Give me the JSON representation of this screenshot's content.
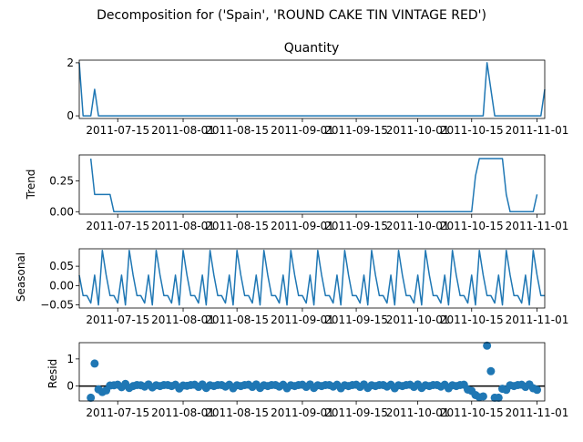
{
  "figure": {
    "suptitle": "Decomposition for ('Spain', 'ROUND CAKE TIN VINTAGE RED')"
  },
  "colors": {
    "series": "#1f77b4",
    "axis": "#000000",
    "background": "#ffffff"
  },
  "chart_data": [
    {
      "type": "line",
      "title": "Quantity",
      "ylabel": "",
      "x_start": "2011-07-05",
      "x_end": "2011-11-03",
      "xlim": [
        "2011-07-05",
        "2011-11-03"
      ],
      "ylim": [
        -0.1,
        2.1
      ],
      "yticks": [
        0,
        2
      ],
      "ytick_labels": [
        "0",
        "2"
      ],
      "xtick_dates": [
        "2011-07-15",
        "2011-08-01",
        "2011-08-15",
        "2011-09-01",
        "2011-09-15",
        "2011-10-01",
        "2011-10-15",
        "2011-11-01"
      ],
      "xtick_labels": [
        "2011-07-15",
        "2011-08-01",
        "2011-08-15",
        "2011-09-01",
        "2011-09-15",
        "2011-10-01",
        "2011-10-15",
        "2011-11-01"
      ],
      "points": [
        [
          "2011-07-05",
          2
        ],
        [
          "2011-07-06",
          0
        ],
        [
          "2011-07-08",
          0
        ],
        [
          "2011-07-09",
          1
        ],
        [
          "2011-07-10",
          0
        ],
        [
          "2011-10-18",
          0
        ],
        [
          "2011-10-19",
          2
        ],
        [
          "2011-10-21",
          0
        ],
        [
          "2011-11-02",
          0
        ],
        [
          "2011-11-03",
          1
        ]
      ]
    },
    {
      "type": "line",
      "title": "",
      "ylabel": "Trend",
      "x_start": "2011-07-05",
      "x_end": "2011-11-03",
      "xlim": [
        "2011-07-05",
        "2011-11-03"
      ],
      "ylim": [
        -0.02,
        0.46
      ],
      "yticks": [
        0,
        0.25
      ],
      "ytick_labels": [
        "0.00",
        "0.25"
      ],
      "xtick_dates": [
        "2011-07-15",
        "2011-08-01",
        "2011-08-15",
        "2011-09-01",
        "2011-09-15",
        "2011-10-01",
        "2011-10-15",
        "2011-11-01"
      ],
      "xtick_labels": [
        "2011-07-15",
        "2011-08-01",
        "2011-08-15",
        "2011-09-01",
        "2011-09-15",
        "2011-10-01",
        "2011-10-15",
        "2011-11-01"
      ],
      "points": [
        [
          "2011-07-08",
          0.43
        ],
        [
          "2011-07-09",
          0.14
        ],
        [
          "2011-07-13",
          0.14
        ],
        [
          "2011-07-14",
          0.0
        ],
        [
          "2011-10-15",
          0.0
        ],
        [
          "2011-10-16",
          0.29
        ],
        [
          "2011-10-17",
          0.43
        ],
        [
          "2011-10-23",
          0.43
        ],
        [
          "2011-10-24",
          0.14
        ],
        [
          "2011-10-25",
          0.0
        ],
        [
          "2011-10-31",
          0.0
        ],
        [
          "2011-11-01",
          0.14
        ]
      ]
    },
    {
      "type": "line",
      "title": "",
      "ylabel": "Seasonal",
      "x_start": "2011-07-05",
      "x_end": "2011-11-03",
      "xlim": [
        "2011-07-05",
        "2011-11-03"
      ],
      "ylim": [
        -0.058,
        0.095
      ],
      "yticks": [
        -0.05,
        0.0,
        0.05
      ],
      "ytick_labels": [
        "−0.05",
        "0.00",
        "0.05"
      ],
      "xtick_dates": [
        "2011-07-15",
        "2011-08-01",
        "2011-08-15",
        "2011-09-01",
        "2011-09-15",
        "2011-10-01",
        "2011-10-15",
        "2011-11-01"
      ],
      "xtick_labels": [
        "2011-07-15",
        "2011-08-01",
        "2011-08-15",
        "2011-09-01",
        "2011-09-15",
        "2011-10-01",
        "2011-10-15",
        "2011-11-01"
      ],
      "period_days": 7,
      "weekly_pattern": [
        0.027,
        -0.026,
        -0.026,
        -0.045,
        0.027,
        -0.05,
        0.091
      ]
    },
    {
      "type": "scatter",
      "title": "",
      "ylabel": "Resid",
      "x_start": "2011-07-05",
      "x_end": "2011-11-03",
      "xlim": [
        "2011-07-05",
        "2011-11-03"
      ],
      "ylim": [
        -0.55,
        1.6
      ],
      "yticks": [
        0,
        1
      ],
      "ytick_labels": [
        "0",
        "1"
      ],
      "baseline": 0,
      "xtick_dates": [
        "2011-07-15",
        "2011-08-01",
        "2011-08-15",
        "2011-09-01",
        "2011-09-15",
        "2011-10-01",
        "2011-10-15",
        "2011-11-01"
      ],
      "xtick_labels": [
        "2011-07-15",
        "2011-08-01",
        "2011-08-15",
        "2011-09-01",
        "2011-09-15",
        "2011-10-01",
        "2011-10-15",
        "2011-11-01"
      ],
      "points": [
        [
          "2011-07-08",
          -0.43
        ],
        [
          "2011-07-09",
          0.83
        ],
        [
          "2011-07-10",
          -0.12
        ],
        [
          "2011-07-11",
          -0.22
        ],
        [
          "2011-07-12",
          -0.16
        ],
        [
          "2011-07-13",
          0.02
        ],
        [
          "2011-07-14",
          0.03
        ],
        [
          "2011-07-15",
          0.05
        ],
        [
          "2011-07-16",
          -0.04
        ],
        [
          "2011-07-17",
          0.08
        ],
        [
          "2011-07-18",
          -0.07
        ],
        [
          "2011-07-19",
          0.0
        ],
        [
          "2011-07-20",
          0.04
        ],
        [
          "2011-07-21",
          0.03
        ],
        [
          "2011-07-22",
          -0.02
        ],
        [
          "2011-07-23",
          0.06
        ],
        [
          "2011-07-24",
          -0.05
        ],
        [
          "2011-07-25",
          0.03
        ],
        [
          "2011-07-26",
          0.0
        ],
        [
          "2011-07-27",
          0.04
        ],
        [
          "2011-07-28",
          0.04
        ],
        [
          "2011-07-29",
          0.0
        ],
        [
          "2011-07-30",
          0.05
        ],
        [
          "2011-07-31",
          -0.09
        ],
        [
          "2011-08-01",
          0.02
        ],
        [
          "2011-08-02",
          0.01
        ],
        [
          "2011-08-03",
          0.04
        ],
        [
          "2011-08-04",
          0.05
        ],
        [
          "2011-08-05",
          -0.03
        ],
        [
          "2011-08-06",
          0.06
        ],
        [
          "2011-08-07",
          -0.07
        ],
        [
          "2011-08-08",
          0.03
        ],
        [
          "2011-08-09",
          0.0
        ],
        [
          "2011-08-10",
          0.04
        ],
        [
          "2011-08-11",
          0.04
        ],
        [
          "2011-08-12",
          -0.02
        ],
        [
          "2011-08-13",
          0.05
        ],
        [
          "2011-08-14",
          -0.08
        ],
        [
          "2011-08-15",
          0.03
        ],
        [
          "2011-08-16",
          0.0
        ],
        [
          "2011-08-17",
          0.04
        ],
        [
          "2011-08-18",
          0.05
        ],
        [
          "2011-08-19",
          -0.03
        ],
        [
          "2011-08-20",
          0.06
        ],
        [
          "2011-08-21",
          -0.07
        ],
        [
          "2011-08-22",
          0.03
        ],
        [
          "2011-08-23",
          0.0
        ],
        [
          "2011-08-24",
          0.04
        ],
        [
          "2011-08-25",
          0.04
        ],
        [
          "2011-08-26",
          -0.02
        ],
        [
          "2011-08-27",
          0.05
        ],
        [
          "2011-08-28",
          -0.08
        ],
        [
          "2011-08-29",
          0.03
        ],
        [
          "2011-08-30",
          0.0
        ],
        [
          "2011-08-31",
          0.04
        ],
        [
          "2011-09-01",
          0.05
        ],
        [
          "2011-09-02",
          -0.03
        ],
        [
          "2011-09-03",
          0.06
        ],
        [
          "2011-09-04",
          -0.07
        ],
        [
          "2011-09-05",
          0.03
        ],
        [
          "2011-09-06",
          0.0
        ],
        [
          "2011-09-07",
          0.04
        ],
        [
          "2011-09-08",
          0.04
        ],
        [
          "2011-09-09",
          -0.02
        ],
        [
          "2011-09-10",
          0.05
        ],
        [
          "2011-09-11",
          -0.08
        ],
        [
          "2011-09-12",
          0.03
        ],
        [
          "2011-09-13",
          0.0
        ],
        [
          "2011-09-14",
          0.04
        ],
        [
          "2011-09-15",
          0.05
        ],
        [
          "2011-09-16",
          -0.03
        ],
        [
          "2011-09-17",
          0.06
        ],
        [
          "2011-09-18",
          -0.07
        ],
        [
          "2011-09-19",
          0.03
        ],
        [
          "2011-09-20",
          0.0
        ],
        [
          "2011-09-21",
          0.04
        ],
        [
          "2011-09-22",
          0.04
        ],
        [
          "2011-09-23",
          -0.02
        ],
        [
          "2011-09-24",
          0.05
        ],
        [
          "2011-09-25",
          -0.08
        ],
        [
          "2011-09-26",
          0.03
        ],
        [
          "2011-09-27",
          0.0
        ],
        [
          "2011-09-28",
          0.04
        ],
        [
          "2011-09-29",
          0.05
        ],
        [
          "2011-09-30",
          -0.03
        ],
        [
          "2011-10-01",
          0.06
        ],
        [
          "2011-10-02",
          -0.07
        ],
        [
          "2011-10-03",
          0.03
        ],
        [
          "2011-10-04",
          0.0
        ],
        [
          "2011-10-05",
          0.04
        ],
        [
          "2011-10-06",
          0.04
        ],
        [
          "2011-10-07",
          -0.02
        ],
        [
          "2011-10-08",
          0.05
        ],
        [
          "2011-10-09",
          -0.08
        ],
        [
          "2011-10-10",
          0.03
        ],
        [
          "2011-10-11",
          0.0
        ],
        [
          "2011-10-12",
          0.04
        ],
        [
          "2011-10-13",
          0.05
        ],
        [
          "2011-10-14",
          -0.13
        ],
        [
          "2011-10-15",
          -0.18
        ],
        [
          "2011-10-16",
          -0.33
        ],
        [
          "2011-10-17",
          -0.41
        ],
        [
          "2011-10-18",
          -0.38
        ],
        [
          "2011-10-19",
          1.49
        ],
        [
          "2011-10-20",
          0.55
        ],
        [
          "2011-10-21",
          -0.43
        ],
        [
          "2011-10-22",
          -0.43
        ],
        [
          "2011-10-23",
          -0.1
        ],
        [
          "2011-10-24",
          -0.14
        ],
        [
          "2011-10-25",
          0.03
        ],
        [
          "2011-10-26",
          0.0
        ],
        [
          "2011-10-27",
          0.04
        ],
        [
          "2011-10-28",
          0.05
        ],
        [
          "2011-10-29",
          -0.03
        ],
        [
          "2011-10-30",
          0.06
        ],
        [
          "2011-10-31",
          -0.08
        ],
        [
          "2011-11-01",
          -0.14
        ]
      ]
    }
  ]
}
